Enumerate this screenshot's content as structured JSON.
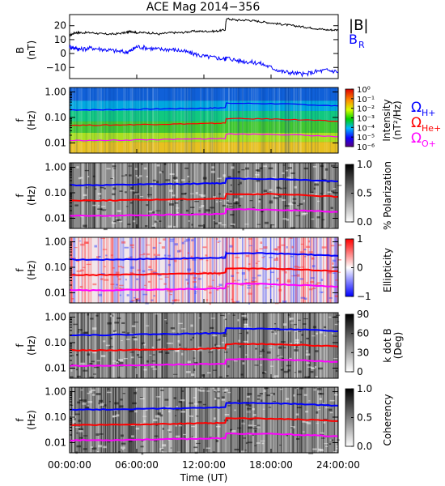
{
  "title": "ACE Mag 2014−356",
  "colors": {
    "btotal": "#000000",
    "br": "#0000ff",
    "gyro_h": "#0000ff",
    "gyro_he": "#ff0000",
    "gyro_o": "#ff00ff"
  },
  "x_axis": {
    "label": "Time (UT)",
    "range_hours": [
      0,
      24
    ],
    "ticks": [
      "00:00:00",
      "06:00:00",
      "12:00:00",
      "18:00:00",
      "24:00:00"
    ]
  },
  "freq_ticks": [
    "1.00",
    "0.10",
    "0.01"
  ],
  "gyro_labels": {
    "h": {
      "symbol": "Ω",
      "sub": "H+"
    },
    "he": {
      "symbol": "Ω",
      "sub": "He+"
    },
    "o": {
      "symbol": "Ω",
      "sub": "O+"
    }
  },
  "chart_data": [
    {
      "type": "line",
      "panel": "field",
      "ylabel": "B",
      "yunit": "(nT)",
      "ylim": [
        -18,
        28
      ],
      "yticks": [
        "20",
        "10",
        "0",
        "−10"
      ],
      "legend": [
        "|B|",
        "B"
      ],
      "legend_sub": "R",
      "series": [
        {
          "name": "|B|",
          "x": [
            0,
            0.5,
            1,
            2,
            3,
            4,
            5,
            5.5,
            6,
            7,
            8,
            9,
            10,
            11,
            12,
            13,
            13.9,
            14,
            15,
            16,
            17,
            18,
            19,
            20,
            21,
            22,
            23,
            24
          ],
          "values": [
            13,
            15,
            15,
            15,
            14,
            14,
            15,
            16,
            15,
            15,
            14,
            15,
            15,
            16,
            16,
            16,
            17,
            25,
            24,
            24,
            23,
            22,
            21,
            20,
            19,
            18,
            17,
            17
          ]
        },
        {
          "name": "B",
          "x": [
            0,
            0.5,
            1,
            2,
            3,
            4,
            5,
            5.5,
            6,
            7,
            8,
            9,
            10,
            11,
            12,
            13,
            13.9,
            14,
            15,
            16,
            17,
            18,
            19,
            20,
            21,
            22,
            23,
            24
          ],
          "values": [
            5,
            4,
            3,
            4,
            3,
            2,
            1,
            2,
            5,
            4,
            3,
            3,
            2,
            0,
            -2,
            -3,
            -4,
            -3,
            -5,
            -6,
            -7,
            -10,
            -13,
            -14,
            -15,
            -13,
            -12,
            -13
          ]
        }
      ]
    },
    {
      "type": "heatmap",
      "panel": "intensity",
      "ylabel": "f",
      "yunit": "(Hz)",
      "ylim": [
        0.004,
        1.5
      ],
      "yscale": "log",
      "colorbar_title": "Intensity",
      "colorbar_unit": "(nT²/Hz)",
      "colorbar_ticks": [
        "10⁰",
        "10⁻¹",
        "10⁻²",
        "10⁻³",
        "10⁻⁴",
        "10⁻⁵",
        "10⁻⁶"
      ],
      "colormap": "rainbow"
    },
    {
      "type": "heatmap",
      "panel": "polarization",
      "ylabel": "f",
      "yunit": "(Hz)",
      "ylim": [
        0.004,
        1.5
      ],
      "yscale": "log",
      "colorbar_title": "% Polarization",
      "colorbar_ticks": [
        "1.0",
        "0.5",
        "0.0"
      ],
      "colormap": "gray"
    },
    {
      "type": "heatmap",
      "panel": "ellipticity",
      "ylabel": "f",
      "yunit": "(Hz)",
      "ylim": [
        0.004,
        1.5
      ],
      "yscale": "log",
      "colorbar_title": "Ellipticity",
      "colorbar_ticks": [
        "1",
        "0",
        "−1"
      ],
      "colormap": "bwr"
    },
    {
      "type": "heatmap",
      "panel": "kdotb",
      "ylabel": "f",
      "yunit": "(Hz)",
      "ylim": [
        0.004,
        1.5
      ],
      "yscale": "log",
      "colorbar_title": "k dot B",
      "colorbar_unit": "(Deg)",
      "colorbar_ticks": [
        "90",
        "60",
        "30",
        "0"
      ],
      "colormap": "gray"
    },
    {
      "type": "heatmap",
      "panel": "coherency",
      "ylabel": "f",
      "yunit": "(Hz)",
      "ylim": [
        0.004,
        1.5
      ],
      "yscale": "log",
      "colorbar_title": "Coherency",
      "colorbar_ticks": [
        "1.0",
        "0.5",
        "0.0"
      ],
      "colormap": "gray"
    }
  ],
  "gyrofrequency_hz": {
    "x": [
      0,
      3,
      6,
      9,
      12,
      13.9,
      14,
      18,
      21,
      24
    ],
    "h": [
      0.2,
      0.2,
      0.21,
      0.22,
      0.23,
      0.24,
      0.36,
      0.35,
      0.32,
      0.28
    ]
  }
}
